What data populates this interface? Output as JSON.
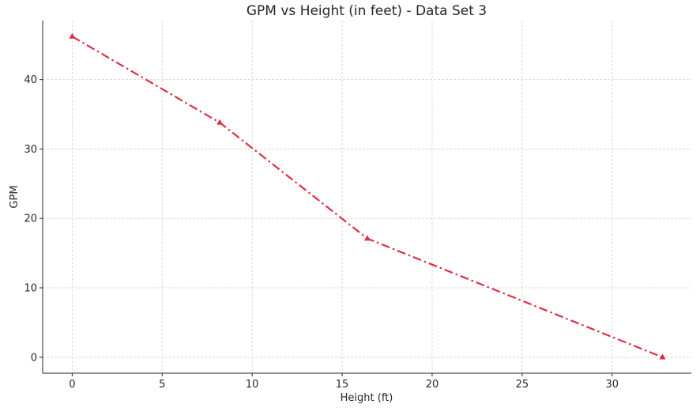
{
  "chart_data": {
    "type": "line",
    "title": "GPM vs Height (in feet) - Data Set 3",
    "xlabel": "Height (ft)",
    "ylabel": "GPM",
    "xlim": [
      -1.64,
      34.4
    ],
    "ylim": [
      -2.3,
      48.5
    ],
    "xticks": [
      0,
      5,
      10,
      15,
      20,
      25,
      30
    ],
    "yticks": [
      0,
      10,
      20,
      30,
      40
    ],
    "grid": true,
    "series": [
      {
        "color": "#dc2f45",
        "line_style": "dash-dot",
        "marker": "triangle",
        "x": [
          0,
          8.2,
          16.4,
          32.8
        ],
        "y": [
          46.2,
          33.8,
          17.1,
          0
        ]
      }
    ]
  }
}
